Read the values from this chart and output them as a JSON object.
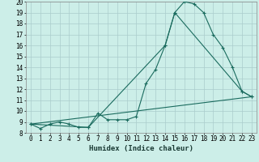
{
  "xlabel": "Humidex (Indice chaleur)",
  "bg_color": "#cceee8",
  "grid_color": "#aacccc",
  "line_color": "#1a6b5e",
  "xlim": [
    -0.5,
    23.5
  ],
  "ylim": [
    8,
    20
  ],
  "xticks": [
    0,
    1,
    2,
    3,
    4,
    5,
    6,
    7,
    8,
    9,
    10,
    11,
    12,
    13,
    14,
    15,
    16,
    17,
    18,
    19,
    20,
    21,
    22,
    23
  ],
  "yticks": [
    8,
    9,
    10,
    11,
    12,
    13,
    14,
    15,
    16,
    17,
    18,
    19,
    20
  ],
  "line1_x": [
    0,
    1,
    2,
    3,
    4,
    5,
    6,
    7,
    8,
    9,
    10,
    11,
    12,
    13,
    14,
    15,
    16,
    17,
    18,
    19,
    20,
    21,
    22,
    23
  ],
  "line1_y": [
    8.8,
    8.4,
    8.8,
    9.0,
    8.8,
    8.5,
    8.5,
    9.8,
    9.2,
    9.2,
    9.2,
    9.5,
    12.5,
    13.8,
    16.0,
    19.0,
    20.0,
    19.8,
    19.0,
    17.0,
    15.8,
    14.0,
    11.8,
    11.3
  ],
  "line2_x": [
    0,
    6,
    14,
    15,
    22,
    23
  ],
  "line2_y": [
    8.8,
    8.5,
    16.0,
    19.0,
    11.8,
    11.3
  ],
  "line3_x": [
    0,
    23
  ],
  "line3_y": [
    8.8,
    11.3
  ],
  "tick_fontsize": 5.5,
  "xlabel_fontsize": 6.5
}
